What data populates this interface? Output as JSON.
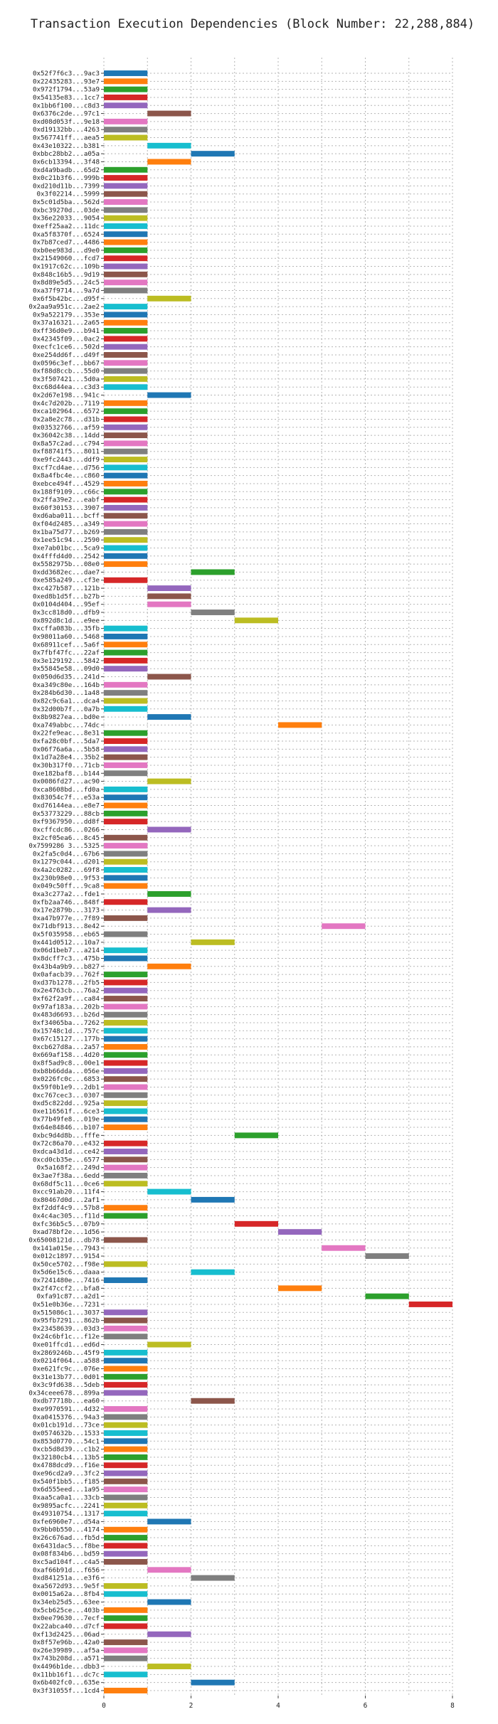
{
  "chart_data": {
    "type": "bar",
    "orientation": "horizontal-gantt",
    "title": "Transaction Execution Dependencies (Block Number: 22,288,884)",
    "xlabel": "",
    "ylabel": "",
    "xlim": [
      0,
      8
    ],
    "xticks": [
      0,
      2,
      4,
      6,
      8
    ],
    "grid": true,
    "palette": [
      "#1f77b4",
      "#ff7f0e",
      "#2ca02c",
      "#d62728",
      "#9467bd",
      "#8c564b",
      "#e377c2",
      "#7f7f7f",
      "#bcbd22",
      "#17becf"
    ],
    "transactions": [
      {
        "hash": "0x52f7f6c3...9ac3",
        "start": 0,
        "end": 1
      },
      {
        "hash": "0x22435283...93e7",
        "start": 0,
        "end": 1
      },
      {
        "hash": "0x972f1794...53a9",
        "start": 0,
        "end": 1
      },
      {
        "hash": "0x54135e83...1cc7",
        "start": 0,
        "end": 1
      },
      {
        "hash": "0x1bb6f100...c8d3",
        "start": 0,
        "end": 1
      },
      {
        "hash": "0x6376c2de...97c1",
        "start": 1,
        "end": 2
      },
      {
        "hash": "0xd08d053f...9e18",
        "start": 0,
        "end": 1
      },
      {
        "hash": "0xd19132bb...4263",
        "start": 0,
        "end": 1
      },
      {
        "hash": "0x567741ff...aea5",
        "start": 0,
        "end": 1
      },
      {
        "hash": "0x43e10322...b381",
        "start": 1,
        "end": 2
      },
      {
        "hash": "0xbbc28bb2...a05a",
        "start": 2,
        "end": 3
      },
      {
        "hash": "0x6cb13394...3f48",
        "start": 1,
        "end": 2
      },
      {
        "hash": "0xd4a9badb...65d2",
        "start": 0,
        "end": 1
      },
      {
        "hash": "0x0c21b3f6...999b",
        "start": 0,
        "end": 1
      },
      {
        "hash": "0xd210d11b...7399",
        "start": 0,
        "end": 1
      },
      {
        "hash": "0x3f02214...5999",
        "start": 0,
        "end": 1
      },
      {
        "hash": "0x5c01d5ba...562d",
        "start": 0,
        "end": 1
      },
      {
        "hash": "0xbc39270d...03de",
        "start": 0,
        "end": 1
      },
      {
        "hash": "0x36e22033...9054",
        "start": 0,
        "end": 1
      },
      {
        "hash": "0xeff25aa2...11dc",
        "start": 0,
        "end": 1
      },
      {
        "hash": "0xa5f8370f...6524",
        "start": 0,
        "end": 1
      },
      {
        "hash": "0x7b87ced7...4486",
        "start": 0,
        "end": 1
      },
      {
        "hash": "0xb0ee983d...d9e0",
        "start": 0,
        "end": 1
      },
      {
        "hash": "0x21549060...fcd7",
        "start": 0,
        "end": 1
      },
      {
        "hash": "0x1917c62c...109b",
        "start": 0,
        "end": 1
      },
      {
        "hash": "0x848c16b5...9d19",
        "start": 0,
        "end": 1
      },
      {
        "hash": "0x8d89e5d5...24c5",
        "start": 0,
        "end": 1
      },
      {
        "hash": "0xa37f9714...9a7d",
        "start": 0,
        "end": 1
      },
      {
        "hash": "0x6f5b42bc...d95f",
        "start": 1,
        "end": 2
      },
      {
        "hash": "0x2aa9a951c...2ae2",
        "start": 0,
        "end": 1
      },
      {
        "hash": "0x9a522179...353e",
        "start": 0,
        "end": 1
      },
      {
        "hash": "0x37a16321...2a65",
        "start": 0,
        "end": 1
      },
      {
        "hash": "0xff36d0e9...b941",
        "start": 0,
        "end": 1
      },
      {
        "hash": "0x42345f09...0ac2",
        "start": 0,
        "end": 1
      },
      {
        "hash": "0xecfc1ce6...502d",
        "start": 0,
        "end": 1
      },
      {
        "hash": "0xe254dd6f...d49f",
        "start": 0,
        "end": 1
      },
      {
        "hash": "0x0596c3ef...bb67",
        "start": 0,
        "end": 1
      },
      {
        "hash": "0xf88d8ccb...55d0",
        "start": 0,
        "end": 1
      },
      {
        "hash": "0x3f507421...5d0a",
        "start": 0,
        "end": 1
      },
      {
        "hash": "0xc68d44ea...c3d3",
        "start": 0,
        "end": 1
      },
      {
        "hash": "0x2d67e198...941c",
        "start": 1,
        "end": 2
      },
      {
        "hash": "0x4c7d202b...7119",
        "start": 0,
        "end": 1
      },
      {
        "hash": "0xca102964...6572",
        "start": 0,
        "end": 1
      },
      {
        "hash": "0x2a8e2c78...d31b",
        "start": 0,
        "end": 1
      },
      {
        "hash": "0x03532766...af59",
        "start": 0,
        "end": 1
      },
      {
        "hash": "0x36042c38...14dd",
        "start": 0,
        "end": 1
      },
      {
        "hash": "0x8a57c2ad...c794",
        "start": 0,
        "end": 1
      },
      {
        "hash": "0xf88741f5...8011",
        "start": 0,
        "end": 1
      },
      {
        "hash": "0xe9fc2443...ddf9",
        "start": 0,
        "end": 1
      },
      {
        "hash": "0xcf7cd4ae...d756",
        "start": 0,
        "end": 1
      },
      {
        "hash": "0x8a4fbc4e...c860",
        "start": 0,
        "end": 1
      },
      {
        "hash": "0xebce494f...4529",
        "start": 0,
        "end": 1
      },
      {
        "hash": "0x188f9109...c66c",
        "start": 0,
        "end": 1
      },
      {
        "hash": "0x2ffa39e2...eabf",
        "start": 0,
        "end": 1
      },
      {
        "hash": "0x60f30153...3907",
        "start": 0,
        "end": 1
      },
      {
        "hash": "0xd6aba011...bcff",
        "start": 0,
        "end": 1
      },
      {
        "hash": "0xf04d2485...a349",
        "start": 0,
        "end": 1
      },
      {
        "hash": "0x1ba75d77...b269",
        "start": 0,
        "end": 1
      },
      {
        "hash": "0x1ee51c94...2590",
        "start": 0,
        "end": 1
      },
      {
        "hash": "0xe7ab01bc...5ca9",
        "start": 0,
        "end": 1
      },
      {
        "hash": "0x4fffd4d0...2542",
        "start": 0,
        "end": 1
      },
      {
        "hash": "0x5582975b...08e0",
        "start": 0,
        "end": 1
      },
      {
        "hash": "0xdd3682ec...dae7",
        "start": 2,
        "end": 3
      },
      {
        "hash": "0xe585a249...cf3e",
        "start": 0,
        "end": 1
      },
      {
        "hash": "0xc427b587...121b",
        "start": 1,
        "end": 2
      },
      {
        "hash": "0xed8b1d5f...b27b",
        "start": 1,
        "end": 2
      },
      {
        "hash": "0x0104d404...95ef",
        "start": 1,
        "end": 2
      },
      {
        "hash": "0x3cc818d0...dfb9",
        "start": 2,
        "end": 3
      },
      {
        "hash": "0x892d8c1d...e9ee",
        "start": 3,
        "end": 4
      },
      {
        "hash": "0xcffa083b...35fb",
        "start": 0,
        "end": 1
      },
      {
        "hash": "0x98011a60...5468",
        "start": 0,
        "end": 1
      },
      {
        "hash": "0x68911cef...5a6f",
        "start": 0,
        "end": 1
      },
      {
        "hash": "0x7fbf47fc...22af",
        "start": 0,
        "end": 1
      },
      {
        "hash": "0x3e129192...5842",
        "start": 0,
        "end": 1
      },
      {
        "hash": "0x55845e58...09d0",
        "start": 0,
        "end": 1
      },
      {
        "hash": "0x050d6d35...241d",
        "start": 1,
        "end": 2
      },
      {
        "hash": "0xa349c80e...164b",
        "start": 0,
        "end": 1
      },
      {
        "hash": "0x284b6d30...1a48",
        "start": 0,
        "end": 1
      },
      {
        "hash": "0x82c9c6a1...dca4",
        "start": 0,
        "end": 1
      },
      {
        "hash": "0x32d00b7f...0a7b",
        "start": 0,
        "end": 1
      },
      {
        "hash": "0x8b9827ea...bd0e",
        "start": 1,
        "end": 2
      },
      {
        "hash": "0xa749abbc...74dc",
        "start": 4,
        "end": 5
      },
      {
        "hash": "0x22fe9eac...8e31",
        "start": 0,
        "end": 1
      },
      {
        "hash": "0xfa28c0bf...5da7",
        "start": 0,
        "end": 1
      },
      {
        "hash": "0x06f76a6a...5b58",
        "start": 0,
        "end": 1
      },
      {
        "hash": "0x1d7a28e4...35b2",
        "start": 0,
        "end": 1
      },
      {
        "hash": "0x30b317f0...71cb",
        "start": 0,
        "end": 1
      },
      {
        "hash": "0xe182baf8...b144",
        "start": 0,
        "end": 1
      },
      {
        "hash": "0x0086fd27...ac90",
        "start": 1,
        "end": 2
      },
      {
        "hash": "0xca8608bd...fd0a",
        "start": 0,
        "end": 1
      },
      {
        "hash": "0x83054c7f...e53a",
        "start": 0,
        "end": 1
      },
      {
        "hash": "0xd76144ea...e8e7",
        "start": 0,
        "end": 1
      },
      {
        "hash": "0x53773229...88cb",
        "start": 0,
        "end": 1
      },
      {
        "hash": "0xf9367950...dd8f",
        "start": 0,
        "end": 1
      },
      {
        "hash": "0xcffcdc86...0266",
        "start": 1,
        "end": 2
      },
      {
        "hash": "0x2cf05ea6...8c45",
        "start": 0,
        "end": 1
      },
      {
        "hash": "0x7599286 3...5325",
        "start": 0,
        "end": 1
      },
      {
        "hash": "0x2fa5c0d4...67b6",
        "start": 0,
        "end": 1
      },
      {
        "hash": "0x1279c044...d201",
        "start": 0,
        "end": 1
      },
      {
        "hash": "0x4a2c0282...69f8",
        "start": 0,
        "end": 1
      },
      {
        "hash": "0x230b98e0...9f53",
        "start": 0,
        "end": 1
      },
      {
        "hash": "0x049c50ff...9ca8",
        "start": 0,
        "end": 1
      },
      {
        "hash": "0xa3c277a2...fde1",
        "start": 1,
        "end": 2
      },
      {
        "hash": "0xfb2aa746...848f",
        "start": 0,
        "end": 1
      },
      {
        "hash": "0x17e2879b...3173",
        "start": 1,
        "end": 2
      },
      {
        "hash": "0xa47b977e...7f89",
        "start": 0,
        "end": 1
      },
      {
        "hash": "0x71dbf913...8e42",
        "start": 5,
        "end": 6
      },
      {
        "hash": "0x5f035958...eb65",
        "start": 0,
        "end": 1
      },
      {
        "hash": "0x441d0512...10a7",
        "start": 2,
        "end": 3
      },
      {
        "hash": "0x06d1beb7...a214",
        "start": 0,
        "end": 1
      },
      {
        "hash": "0x8dcff7c3...475b",
        "start": 0,
        "end": 1
      },
      {
        "hash": "0x43b4a9b9...b827",
        "start": 1,
        "end": 2
      },
      {
        "hash": "0x0afacb39...762f",
        "start": 0,
        "end": 1
      },
      {
        "hash": "0xd37b1278...2fb5",
        "start": 0,
        "end": 1
      },
      {
        "hash": "0x2e4763cb...76a2",
        "start": 0,
        "end": 1
      },
      {
        "hash": "0xf62f2a9f...ca84",
        "start": 0,
        "end": 1
      },
      {
        "hash": "0x97af183a...202b",
        "start": 0,
        "end": 1
      },
      {
        "hash": "0x483d6693...b26d",
        "start": 0,
        "end": 1
      },
      {
        "hash": "0xf34065ba...7262",
        "start": 0,
        "end": 1
      },
      {
        "hash": "0x15748c1d...757c",
        "start": 0,
        "end": 1
      },
      {
        "hash": "0x67c15127...177b",
        "start": 0,
        "end": 1
      },
      {
        "hash": "0xcb627d8a...2a57",
        "start": 0,
        "end": 1
      },
      {
        "hash": "0x669af158...4d20",
        "start": 0,
        "end": 1
      },
      {
        "hash": "0x8f5ad9c8...00e1",
        "start": 0,
        "end": 1
      },
      {
        "hash": "0xb8b66dda...056e",
        "start": 0,
        "end": 1
      },
      {
        "hash": "0x0226fc0c...6853",
        "start": 0,
        "end": 1
      },
      {
        "hash": "0x59f0b1e9...2db1",
        "start": 0,
        "end": 1
      },
      {
        "hash": "0xc767cec3...0307",
        "start": 0,
        "end": 1
      },
      {
        "hash": "0xd5c822dd...925a",
        "start": 0,
        "end": 1
      },
      {
        "hash": "0xe116561f...6ce3",
        "start": 0,
        "end": 1
      },
      {
        "hash": "0x77b49fe8...019e",
        "start": 0,
        "end": 1
      },
      {
        "hash": "0x64e84846...b107",
        "start": 0,
        "end": 1
      },
      {
        "hash": "0xbc9d4d8b...fffe",
        "start": 3,
        "end": 4
      },
      {
        "hash": "0x72c86a70...e432",
        "start": 0,
        "end": 1
      },
      {
        "hash": "0xdca43d1d...ce42",
        "start": 0,
        "end": 1
      },
      {
        "hash": "0xcd0cb35e...6577",
        "start": 0,
        "end": 1
      },
      {
        "hash": "0x5a168f2...249d",
        "start": 0,
        "end": 1
      },
      {
        "hash": "0x3ae7f38a...6edd",
        "start": 0,
        "end": 1
      },
      {
        "hash": "0x68df5c11...0ce6",
        "start": 0,
        "end": 1
      },
      {
        "hash": "0xcc91ab20...11f4",
        "start": 1,
        "end": 2
      },
      {
        "hash": "0x80467d0d...2af1",
        "start": 2,
        "end": 3
      },
      {
        "hash": "0xf2ddf4c9...57b8",
        "start": 0,
        "end": 1
      },
      {
        "hash": "0x4c4ac305...f11d",
        "start": 0,
        "end": 1
      },
      {
        "hash": "0xfc36b5c5...07b9",
        "start": 3,
        "end": 4
      },
      {
        "hash": "0xad78bf2e...1d56",
        "start": 4,
        "end": 5
      },
      {
        "hash": "0x65008121d...db78",
        "start": 0,
        "end": 1
      },
      {
        "hash": "0x141a015e...7943",
        "start": 5,
        "end": 6
      },
      {
        "hash": "0x012c1897...9154",
        "start": 6,
        "end": 7
      },
      {
        "hash": "0x50ce5702...f98e",
        "start": 0,
        "end": 1
      },
      {
        "hash": "0x5d6e15c6...daaa",
        "start": 2,
        "end": 3
      },
      {
        "hash": "0x7241480e...7416",
        "start": 0,
        "end": 1
      },
      {
        "hash": "0x2f47ccf2...bfa8",
        "start": 4,
        "end": 5
      },
      {
        "hash": "0xfa91c87...a2d1",
        "start": 6,
        "end": 7
      },
      {
        "hash": "0x51e0b36e...7231",
        "start": 7,
        "end": 8
      },
      {
        "hash": "0x515086c1...3037",
        "start": 0,
        "end": 1
      },
      {
        "hash": "0x95fb7291...862b",
        "start": 0,
        "end": 1
      },
      {
        "hash": "0x23458639...03d3",
        "start": 0,
        "end": 1
      },
      {
        "hash": "0x24c6bf1c...f12e",
        "start": 0,
        "end": 1
      },
      {
        "hash": "0xe01ffcd1...ed6d",
        "start": 1,
        "end": 2
      },
      {
        "hash": "0x2869246b...45f9",
        "start": 0,
        "end": 1
      },
      {
        "hash": "0x0214f064...a588",
        "start": 0,
        "end": 1
      },
      {
        "hash": "0xe621fc9c...076e",
        "start": 0,
        "end": 1
      },
      {
        "hash": "0x31e13b77...0d01",
        "start": 0,
        "end": 1
      },
      {
        "hash": "0x3c9fd638...5deb",
        "start": 0,
        "end": 1
      },
      {
        "hash": "0x34ceee678...899a",
        "start": 0,
        "end": 1
      },
      {
        "hash": "0xdb77718b...ea60",
        "start": 2,
        "end": 3
      },
      {
        "hash": "0xe9970591...4d32",
        "start": 0,
        "end": 1
      },
      {
        "hash": "0xa0415376...94a3",
        "start": 0,
        "end": 1
      },
      {
        "hash": "0x01cb191d...73ce",
        "start": 0,
        "end": 1
      },
      {
        "hash": "0x0574632b...1533",
        "start": 0,
        "end": 1
      },
      {
        "hash": "0x853d0770...54c1",
        "start": 0,
        "end": 1
      },
      {
        "hash": "0xcb5d8d39...c1b2",
        "start": 0,
        "end": 1
      },
      {
        "hash": "0x32180cb4...13b5",
        "start": 0,
        "end": 1
      },
      {
        "hash": "0x4788dcd9...f16e",
        "start": 0,
        "end": 1
      },
      {
        "hash": "0xe96cd2a9...3fc2",
        "start": 0,
        "end": 1
      },
      {
        "hash": "0x540f1bb5...f185",
        "start": 0,
        "end": 1
      },
      {
        "hash": "0x6d555eed...1a95",
        "start": 0,
        "end": 1
      },
      {
        "hash": "0xaa5ca0a1...33cb",
        "start": 0,
        "end": 1
      },
      {
        "hash": "0x9895acfc...2241",
        "start": 0,
        "end": 1
      },
      {
        "hash": "0x49310754...1317",
        "start": 0,
        "end": 1
      },
      {
        "hash": "0xfe6960e7...d54a",
        "start": 1,
        "end": 2
      },
      {
        "hash": "0x9bb0b550...4174",
        "start": 0,
        "end": 1
      },
      {
        "hash": "0x26c676ad...fb5d",
        "start": 0,
        "end": 1
      },
      {
        "hash": "0x6431dac5...f8be",
        "start": 0,
        "end": 1
      },
      {
        "hash": "0x08f834b6...bd59",
        "start": 0,
        "end": 1
      },
      {
        "hash": "0xc5ad104f...c4a5",
        "start": 0,
        "end": 1
      },
      {
        "hash": "0xaf66b91d...f656",
        "start": 1,
        "end": 2
      },
      {
        "hash": "0xd841251a...e3f6",
        "start": 2,
        "end": 3
      },
      {
        "hash": "0xa5672d93...9e5f",
        "start": 0,
        "end": 1
      },
      {
        "hash": "0x0015a62a...8fb4",
        "start": 0,
        "end": 1
      },
      {
        "hash": "0x34eb25d5...63ee",
        "start": 1,
        "end": 2
      },
      {
        "hash": "0x5cb625ce...403b",
        "start": 0,
        "end": 1
      },
      {
        "hash": "0x0ee79630...7ecf",
        "start": 0,
        "end": 1
      },
      {
        "hash": "0x22abca40...d7cf",
        "start": 0,
        "end": 1
      },
      {
        "hash": "0xf13d2425...06ad",
        "start": 1,
        "end": 2
      },
      {
        "hash": "0x8f57e96b...42a0",
        "start": 0,
        "end": 1
      },
      {
        "hash": "0x26e39989...af5a",
        "start": 0,
        "end": 1
      },
      {
        "hash": "0x743b208d...a571",
        "start": 0,
        "end": 1
      },
      {
        "hash": "0x4496b1de...dbb3",
        "start": 1,
        "end": 2
      },
      {
        "hash": "0x11bb16f1...dc7c",
        "start": 0,
        "end": 1
      },
      {
        "hash": "0x6b402fc0...635e",
        "start": 2,
        "end": 3
      },
      {
        "hash": "0x3f31055f...1cd4",
        "start": 0,
        "end": 1
      }
    ]
  }
}
